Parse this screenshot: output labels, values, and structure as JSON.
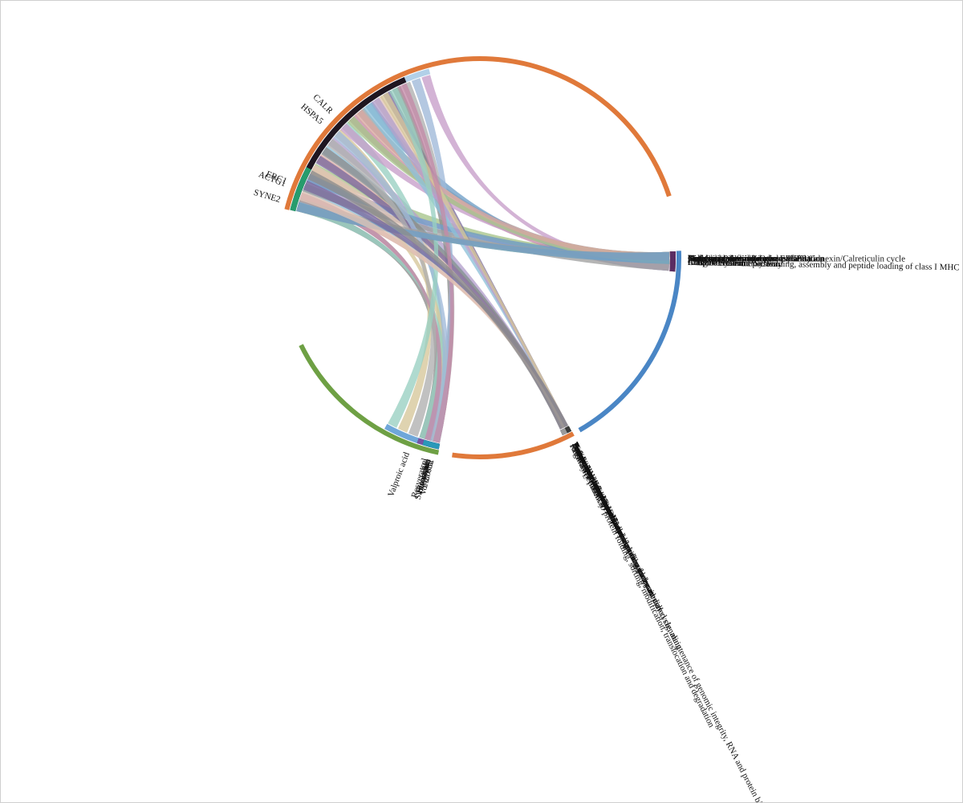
{
  "diagram": {
    "type": "chord",
    "groups": [
      {
        "name": "genes",
        "outer_color": "#e0793a",
        "items": [
          {
            "label": "CALR",
            "color": "#b2d0e8",
            "weight": 40
          },
          {
            "label": "ERC1",
            "color": "#4e4570",
            "weight": 10
          },
          {
            "label": "HSPA5",
            "color": "#1f1620",
            "weight": 35
          },
          {
            "label": "SYNE2",
            "color": "#93d3b0",
            "weight": 3
          },
          {
            "label": "ACTG1",
            "color": "#279c6d",
            "weight": 9
          }
        ]
      },
      {
        "name": "drugs",
        "outer_color": "#6ea044",
        "items": [
          {
            "label": "Y-27632",
            "color": "#25281f",
            "weight": 2
          },
          {
            "label": "Vorinostat",
            "color": "#31402a",
            "weight": 2
          },
          {
            "label": "Valproic acid",
            "color": "#6fa7d9",
            "weight": 10
          },
          {
            "label": "Sirolimus",
            "color": "#d9e8c8",
            "weight": 3
          },
          {
            "label": "Simvastatin",
            "color": "#6d1c26",
            "weight": 3
          },
          {
            "label": "Resveratrol",
            "color": "#7453a4",
            "weight": 4
          },
          {
            "label": "Etoposide",
            "color": "#3f3d88",
            "weight": 3
          },
          {
            "label": "Estradiol",
            "color": "#2a98b8",
            "weight": 3
          }
        ]
      },
      {
        "name": "pathways-right",
        "outer_color": "#4a86c5",
        "items": [
          {
            "label": "Cell Cycle",
            "color": "#1e1e1e",
            "weight": 2
          },
          {
            "label": "Immune System",
            "color": "#2f4527",
            "weight": 3
          },
          {
            "label": "Adaptive Immune System",
            "color": "#7b1e2c",
            "weight": 3
          },
          {
            "label": "Antigen Presentation: Folding, assembly and peptide loading of class I MHC",
            "color": "#e8cfc4",
            "weight": 3
          },
          {
            "label": "Antigen processing-Cross presentation",
            "color": "#3c2b1c",
            "weight": 2
          },
          {
            "label": "Metabolism of proteins",
            "color": "#5a8c45",
            "weight": 2
          },
          {
            "label": "Post-translational protein modification",
            "color": "#3e6b3e",
            "weight": 2
          },
          {
            "label": "Asparagine N-linked glycosylation",
            "color": "#1c2e1c",
            "weight": 2
          },
          {
            "label": "Unfolded Protein Response (UPR)",
            "color": "#111111",
            "weight": 2
          },
          {
            "label": "Calnexin/calreticulin cycle",
            "color": "#2c2c58",
            "weight": 2
          },
          {
            "label": "Diabetes pathways",
            "color": "#3d5a6a",
            "weight": 2
          },
          {
            "label": "N-glycan trimming in the ER and Calnexin/Calreticulin cycle",
            "color": "#c0407c",
            "weight": 2
          },
          {
            "label": "Classic metabolic pathway",
            "color": "#5b2d62",
            "weight": 3
          }
        ]
      },
      {
        "name": "pathways-bottom",
        "outer_color": "#e0793a",
        "items": [
          {
            "label": "Disease pathway",
            "color": "#5c3b67",
            "weight": 3
          },
          {
            "label": "Nervous system disease pathway",
            "color": "#e37fb4",
            "weight": 2
          },
          {
            "label": "Nutritional and metabolic disease pathway",
            "color": "#a6a6a6",
            "weight": 2
          },
          {
            "label": "Nutritional disorder pathway",
            "color": "#9e6a82",
            "weight": 2
          },
          {
            "label": "Avitaminosis disease pathway",
            "color": "#d87099",
            "weight": 2
          },
          {
            "label": "Antineoplastic and immunomodulatory drug pathway",
            "color": "#7c7c7c",
            "weight": 2
          },
          {
            "label": "Antineoplastic drug pathway",
            "color": "#9d8cc3",
            "weight": 2
          },
          {
            "label": "Azacitidine drug pathway",
            "color": "#bf7f56",
            "weight": 2
          },
          {
            "label": "Irinotecan drug pathway",
            "color": "#1b2a16",
            "weight": 2
          },
          {
            "label": "Sorafenib drug pathway",
            "color": "#8ec1e0",
            "weight": 2
          },
          {
            "label": "Regulatory pathway",
            "color": "#43436e",
            "weight": 4
          },
          {
            "label": "Pathway pertinent to DNA replication and repair, cell cycle, maintenance of genomic integrity, RNA and protein biosynthesis",
            "color": "#2d4a1e",
            "weight": 2
          },
          {
            "label": "Transcription pathway",
            "color": "#2e8c6e",
            "weight": 2
          },
          {
            "label": "Transcription pathway via transcription factor mediated signaling",
            "color": "#373737",
            "weight": 2
          },
          {
            "label": "Pathway pertinent to protein folding, sorting, modification, translocation and degradation",
            "color": "#9a9a9a",
            "weight": 4
          },
          {
            "label": "Protein degradation pathway",
            "color": "#5a5a5a",
            "weight": 2
          },
          {
            "label": "Interleukin-1 family mediated signaling pathway",
            "color": "#c2a474",
            "weight": 2
          },
          {
            "label": "Transcription factor mediated signaling pathway",
            "color": "#161616",
            "weight": 2
          },
          {
            "label": "Protein export",
            "color": "#2e5a3a",
            "weight": 2
          },
          {
            "label": "IL1 pathway",
            "color": "#3a3a3a",
            "weight": 2
          }
        ]
      }
    ],
    "chord_palette": [
      "#8c8c8c",
      "#b0b0b0",
      "#9fb8d8",
      "#c79ec9",
      "#a6c48a",
      "#d9a6a0",
      "#8ec0d8",
      "#b3a0cc",
      "#d6c79a",
      "#99cfc2",
      "#c48ba8",
      "#a0a0a0",
      "#6f9fc7",
      "#e0c4b6",
      "#7a6a9e"
    ]
  }
}
